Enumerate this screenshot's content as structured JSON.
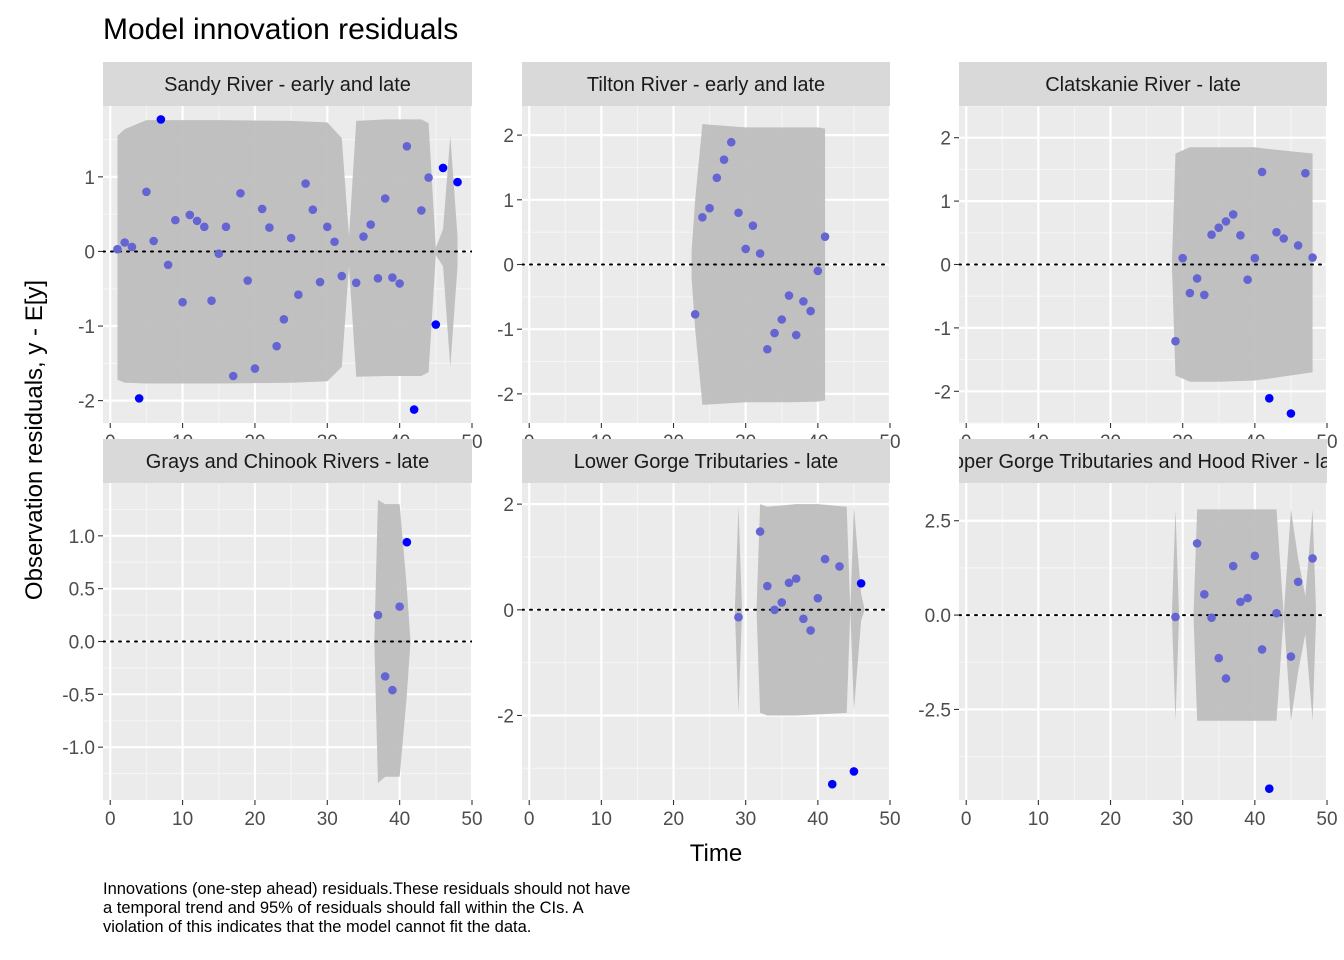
{
  "chart_data": {
    "type": "scatter",
    "title": "Model innovation residuals",
    "xlabel": "Time",
    "ylabel": "Observation residuals, y - E[y]",
    "caption_lines": [
      "Innovations (one-step ahead) residuals.These residuals should not have",
      "a temporal trend and 95% of residuals should fall within the CIs. A",
      "violation of this indicates that the model cannot fit the data."
    ],
    "xlim": [
      -1,
      50
    ],
    "x_ticks": [
      0,
      10,
      20,
      30,
      40,
      50
    ],
    "x_tick_labels": [
      "0",
      "10",
      "20",
      "30",
      "40",
      "50"
    ],
    "grid": true,
    "reference_line": 0,
    "colors": {
      "panel_bg": "#ebebeb",
      "strip_bg": "#d9d9d9",
      "ribbon": "#bebebe",
      "point_inside": "#6464d2",
      "point_outside": "#0000ff",
      "text": "#000000",
      "tick_text": "#4d4d4d"
    },
    "facets": [
      {
        "strip": "Sandy River - early and late",
        "ylim": [
          -2.3,
          1.95
        ],
        "y_ticks": [
          -2,
          -1,
          0,
          1
        ],
        "y_tick_labels": [
          "-2",
          "-1",
          "0",
          "1"
        ],
        "points": [
          [
            1,
            0.03
          ],
          [
            2,
            0.12
          ],
          [
            3,
            0.06
          ],
          [
            4,
            -1.97
          ],
          [
            5,
            0.8
          ],
          [
            6,
            0.14
          ],
          [
            7,
            1.77
          ],
          [
            8,
            -0.18
          ],
          [
            9,
            0.42
          ],
          [
            10,
            -0.68
          ],
          [
            11,
            0.49
          ],
          [
            12,
            0.41
          ],
          [
            13,
            0.33
          ],
          [
            14,
            -0.66
          ],
          [
            15,
            -0.03
          ],
          [
            16,
            0.33
          ],
          [
            17,
            -1.67
          ],
          [
            18,
            0.78
          ],
          [
            19,
            -0.39
          ],
          [
            20,
            -1.57
          ],
          [
            21,
            0.57
          ],
          [
            22,
            0.32
          ],
          [
            23,
            -1.27
          ],
          [
            24,
            -0.91
          ],
          [
            25,
            0.18
          ],
          [
            26,
            -0.58
          ],
          [
            27,
            0.91
          ],
          [
            28,
            0.56
          ],
          [
            29,
            -0.41
          ],
          [
            30,
            0.33
          ],
          [
            31,
            0.13
          ],
          [
            32,
            -0.33
          ],
          [
            34,
            -0.42
          ],
          [
            35,
            0.2
          ],
          [
            36,
            0.36
          ],
          [
            37,
            -0.36
          ],
          [
            38,
            0.71
          ],
          [
            39,
            -0.35
          ],
          [
            40,
            -0.43
          ],
          [
            41,
            1.41
          ],
          [
            42,
            -2.12
          ],
          [
            43,
            0.55
          ],
          [
            44,
            0.99
          ],
          [
            45,
            -0.98
          ],
          [
            46,
            1.12
          ],
          [
            48,
            0.93
          ]
        ],
        "ci_segments": [
          [
            [
              1,
              -1.72,
              1.55
            ],
            [
              2,
              -1.76,
              1.64
            ],
            [
              5,
              -1.77,
              1.76
            ],
            [
              15,
              -1.77,
              1.76
            ],
            [
              25,
              -1.76,
              1.75
            ],
            [
              30,
              -1.74,
              1.73
            ],
            [
              32,
              -1.55,
              1.52
            ],
            [
              33,
              -0.2,
              0.2
            ]
          ],
          [
            [
              33,
              -0.2,
              0.2
            ],
            [
              34,
              -1.68,
              1.75
            ],
            [
              38,
              -1.67,
              1.77
            ],
            [
              43,
              -1.67,
              1.77
            ],
            [
              44,
              -1.62,
              1.72
            ],
            [
              45,
              -0.05,
              0.05
            ]
          ],
          [
            [
              45,
              -0.05,
              0.05
            ],
            [
              46,
              -0.2,
              0.3
            ],
            [
              47,
              -1.55,
              1.55
            ],
            [
              48,
              -0.2,
              0.2
            ]
          ]
        ]
      },
      {
        "strip": "Tilton River - early and late",
        "ylim": [
          -2.45,
          2.45
        ],
        "y_ticks": [
          -2,
          -1,
          0,
          1,
          2
        ],
        "y_tick_labels": [
          "-2",
          "-1",
          "0",
          "1",
          "2"
        ],
        "points": [
          [
            23,
            -0.77
          ],
          [
            24,
            0.73
          ],
          [
            25,
            0.87
          ],
          [
            26,
            1.34
          ],
          [
            27,
            1.62
          ],
          [
            28,
            1.89
          ],
          [
            29,
            0.8
          ],
          [
            30,
            0.24
          ],
          [
            31,
            0.6
          ],
          [
            32,
            0.17
          ],
          [
            33,
            -1.31
          ],
          [
            34,
            -1.06
          ],
          [
            35,
            -0.85
          ],
          [
            36,
            -0.48
          ],
          [
            37,
            -1.09
          ],
          [
            38,
            -0.57
          ],
          [
            39,
            -0.72
          ],
          [
            40,
            -0.1
          ],
          [
            41,
            0.43
          ]
        ],
        "ci_segments": [
          [
            [
              22.5,
              -0.2,
              0.2
            ],
            [
              23,
              -1.0,
              1.0
            ],
            [
              24,
              -2.17,
              2.17
            ],
            [
              30,
              -2.13,
              2.12
            ],
            [
              36,
              -2.13,
              2.12
            ],
            [
              40,
              -2.12,
              2.12
            ],
            [
              41,
              -2.1,
              2.1
            ]
          ]
        ]
      },
      {
        "strip": "Clatskanie River - late",
        "ylim": [
          -2.5,
          2.5
        ],
        "y_ticks": [
          -2,
          -1,
          0,
          1,
          2
        ],
        "y_tick_labels": [
          "-2",
          "-1",
          "0",
          "1",
          "2"
        ],
        "points": [
          [
            29,
            -1.21
          ],
          [
            30,
            0.1
          ],
          [
            31,
            -0.45
          ],
          [
            32,
            -0.22
          ],
          [
            33,
            -0.48
          ],
          [
            34,
            0.47
          ],
          [
            35,
            0.58
          ],
          [
            36,
            0.68
          ],
          [
            37,
            0.79
          ],
          [
            38,
            0.46
          ],
          [
            39,
            -0.24
          ],
          [
            40,
            0.1
          ],
          [
            41,
            1.46
          ],
          [
            42,
            -2.11
          ],
          [
            43,
            0.51
          ],
          [
            44,
            0.41
          ],
          [
            45,
            -2.35
          ],
          [
            46,
            0.3
          ],
          [
            47,
            1.44
          ],
          [
            48,
            0.11
          ]
        ],
        "ci_segments": [
          [
            [
              28.5,
              0.0,
              0.0
            ],
            [
              29,
              -1.75,
              1.75
            ],
            [
              31,
              -1.85,
              1.85
            ],
            [
              35,
              -1.85,
              1.85
            ],
            [
              40,
              -1.83,
              1.85
            ],
            [
              42,
              -1.8,
              1.82
            ],
            [
              48,
              -1.7,
              1.75
            ]
          ]
        ]
      },
      {
        "strip": "Grays and Chinook Rivers - late",
        "ylim": [
          -1.5,
          1.5
        ],
        "y_ticks": [
          -1.0,
          -0.5,
          0.0,
          0.5,
          1.0
        ],
        "y_tick_labels": [
          "-1.0",
          "-0.5",
          "0.0",
          "0.5",
          "1.0"
        ],
        "points": [
          [
            37,
            0.25
          ],
          [
            38,
            -0.33
          ],
          [
            39,
            -0.46
          ],
          [
            40,
            0.33
          ],
          [
            41,
            0.94
          ]
        ],
        "ci_segments": [
          [
            [
              36.5,
              0.0,
              0.0
            ],
            [
              37,
              -1.34,
              1.34
            ],
            [
              38,
              -1.28,
              1.3
            ],
            [
              40,
              -1.28,
              1.3
            ],
            [
              41,
              -0.5,
              0.5
            ],
            [
              41.5,
              0.0,
              0.0
            ]
          ]
        ]
      },
      {
        "strip": "Lower Gorge Tributaries - late",
        "ylim": [
          -3.6,
          2.4
        ],
        "y_ticks": [
          -2,
          0,
          2
        ],
        "y_tick_labels": [
          "-2",
          "0",
          "2"
        ],
        "points": [
          [
            29,
            -0.14
          ],
          [
            32,
            1.48
          ],
          [
            33,
            0.45
          ],
          [
            34,
            0.0
          ],
          [
            35,
            0.14
          ],
          [
            36,
            0.51
          ],
          [
            37,
            0.59
          ],
          [
            38,
            -0.17
          ],
          [
            39,
            -0.39
          ],
          [
            40,
            0.22
          ],
          [
            41,
            0.96
          ],
          [
            42,
            -3.3
          ],
          [
            43,
            0.82
          ],
          [
            45,
            -3.06
          ],
          [
            46,
            0.5
          ]
        ],
        "ci_segments": [
          [
            [
              28.5,
              0.0,
              0.0
            ],
            [
              29,
              -1.95,
              1.95
            ],
            [
              29.5,
              0.0,
              0.0
            ]
          ],
          [
            [
              31.5,
              0.0,
              0.0
            ],
            [
              32,
              -1.95,
              2.0
            ],
            [
              33,
              -2.0,
              1.95
            ],
            [
              37,
              -2.0,
              2.0
            ],
            [
              40,
              -1.98,
              2.0
            ],
            [
              44,
              -1.95,
              1.95
            ],
            [
              44.5,
              0.0,
              0.0
            ]
          ],
          [
            [
              44.5,
              0.0,
              0.0
            ],
            [
              45,
              -1.9,
              1.95
            ],
            [
              46,
              -0.2,
              0.3
            ],
            [
              46.5,
              0.0,
              0.0
            ]
          ]
        ]
      },
      {
        "strip": "Upper Gorge Tributaries and Hood River - late",
        "ylim": [
          -4.9,
          3.5
        ],
        "y_ticks": [
          -2.5,
          0.0,
          2.5
        ],
        "y_tick_labels": [
          "-2.5",
          "0.0",
          "2.5"
        ],
        "points": [
          [
            29,
            -0.05
          ],
          [
            32,
            1.9
          ],
          [
            33,
            0.55
          ],
          [
            34,
            -0.07
          ],
          [
            35,
            -1.14
          ],
          [
            36,
            -1.68
          ],
          [
            37,
            1.3
          ],
          [
            38,
            0.35
          ],
          [
            39,
            0.45
          ],
          [
            40,
            1.57
          ],
          [
            41,
            -0.91
          ],
          [
            42,
            -4.6
          ],
          [
            43,
            0.05
          ],
          [
            45,
            -1.1
          ],
          [
            46,
            0.88
          ],
          [
            48,
            1.5
          ]
        ],
        "ci_segments": [
          [
            [
              28.5,
              0.0,
              0.0
            ],
            [
              29,
              -2.8,
              2.8
            ],
            [
              29.5,
              0.0,
              0.0
            ]
          ],
          [
            [
              31.5,
              0.0,
              0.0
            ],
            [
              32,
              -2.8,
              2.8
            ],
            [
              36,
              -2.8,
              2.8
            ],
            [
              40,
              -2.8,
              2.8
            ],
            [
              43,
              -2.8,
              2.8
            ],
            [
              44,
              0.0,
              0.0
            ]
          ],
          [
            [
              44,
              0.0,
              0.0
            ],
            [
              45,
              -2.8,
              2.8
            ],
            [
              46,
              -1.5,
              1.5
            ],
            [
              47,
              -0.5,
              0.5
            ],
            [
              48,
              -2.8,
              2.8
            ],
            [
              48.5,
              0.0,
              0.0
            ]
          ]
        ]
      }
    ]
  }
}
